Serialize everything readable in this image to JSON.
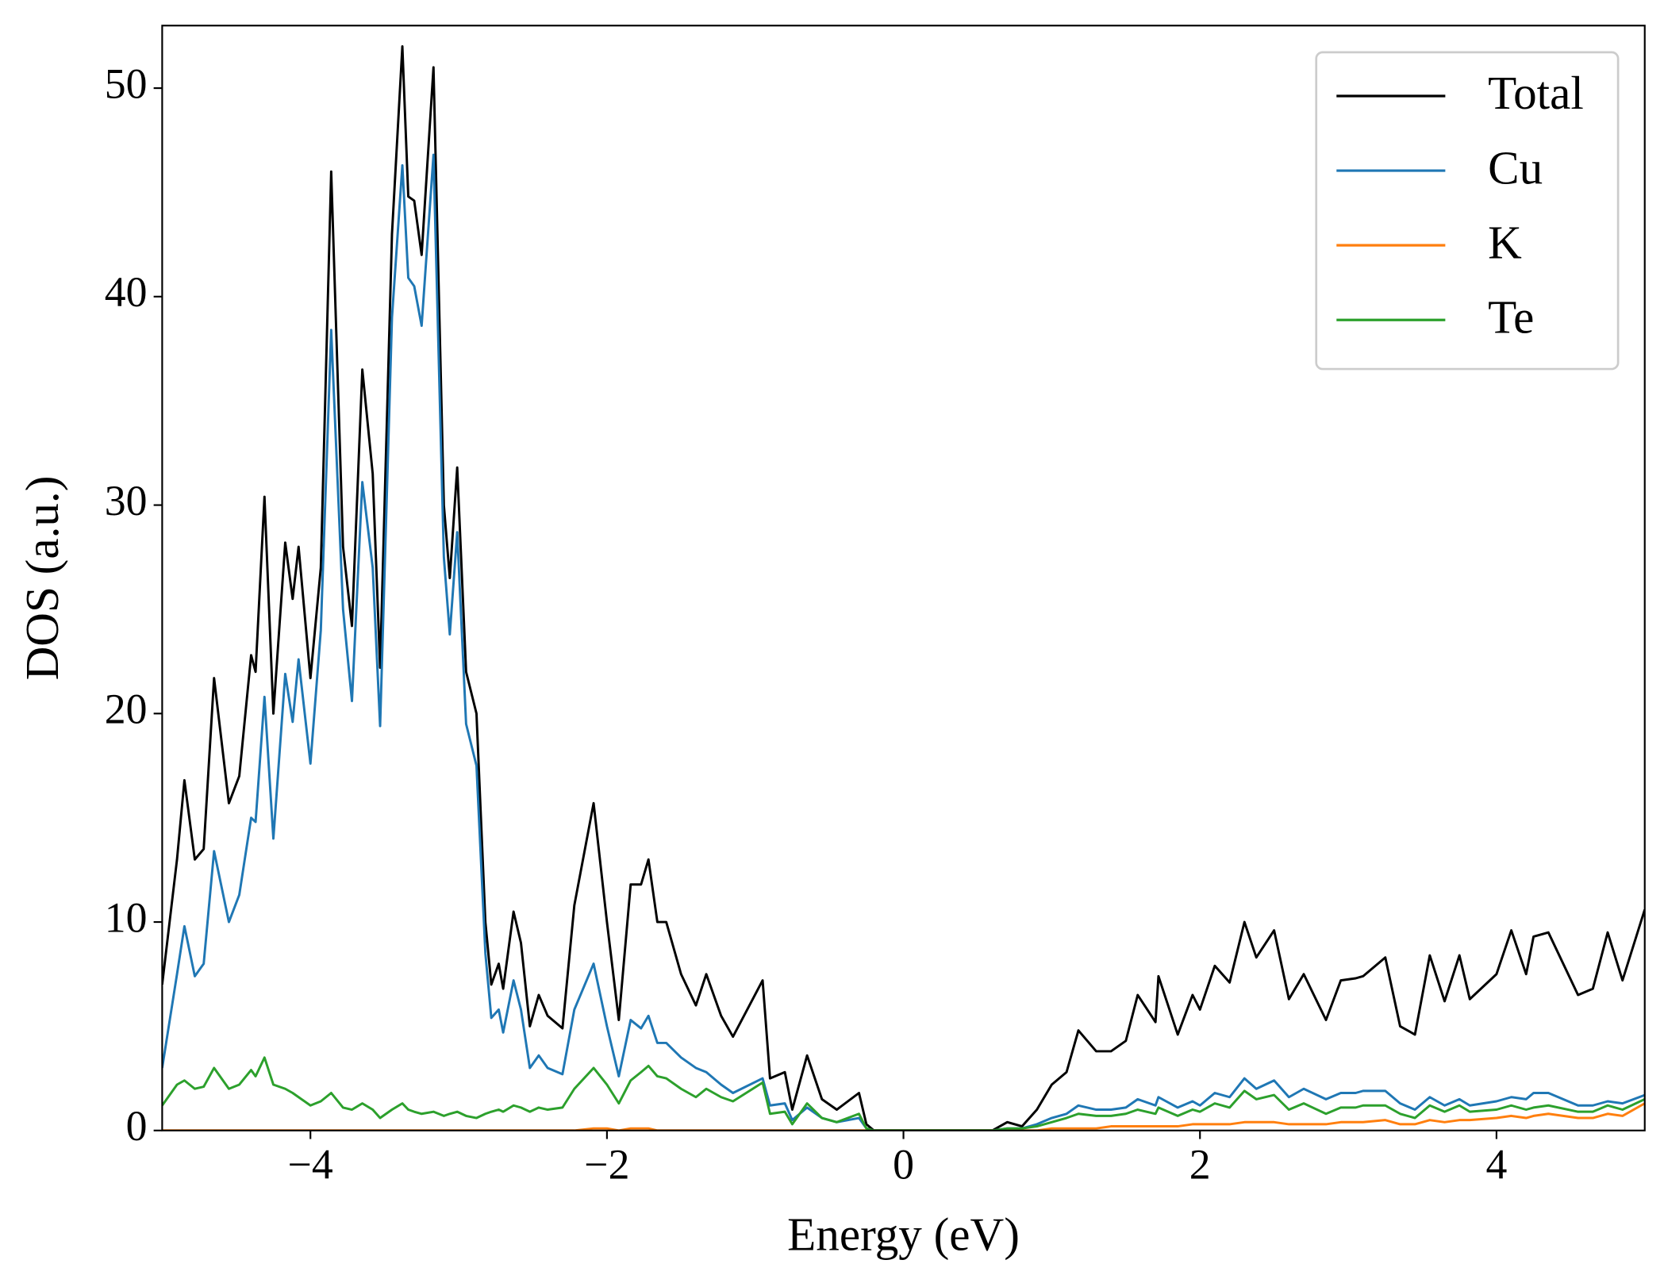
{
  "chart_data": {
    "type": "line",
    "xlabel": "Energy (eV)",
    "ylabel": "DOS (a.u.)",
    "xlim": [
      -5,
      5
    ],
    "ylim": [
      0,
      53
    ],
    "xticks": [
      {
        "value": -4,
        "label": "−4"
      },
      {
        "value": -2,
        "label": "−2"
      },
      0,
      2,
      4
    ],
    "yticks": [
      0,
      10,
      20,
      30,
      40,
      50
    ],
    "legend": "upper right",
    "grid": false,
    "x": [
      -5.0,
      -4.9,
      -4.85,
      -4.78,
      -4.72,
      -4.65,
      -4.55,
      -4.48,
      -4.4,
      -4.37,
      -4.31,
      -4.25,
      -4.17,
      -4.12,
      -4.08,
      -4.0,
      -3.93,
      -3.86,
      -3.78,
      -3.72,
      -3.65,
      -3.58,
      -3.53,
      -3.45,
      -3.38,
      -3.34,
      -3.3,
      -3.25,
      -3.17,
      -3.1,
      -3.06,
      -3.01,
      -2.95,
      -2.88,
      -2.82,
      -2.78,
      -2.73,
      -2.7,
      -2.63,
      -2.58,
      -2.52,
      -2.46,
      -2.4,
      -2.3,
      -2.22,
      -2.09,
      -2.0,
      -1.92,
      -1.84,
      -1.77,
      -1.72,
      -1.66,
      -1.6,
      -1.5,
      -1.4,
      -1.33,
      -1.23,
      -1.15,
      -0.95,
      -0.9,
      -0.8,
      -0.75,
      -0.65,
      -0.55,
      -0.45,
      -0.3,
      -0.25,
      -0.2,
      0.0,
      0.6,
      0.7,
      0.8,
      0.9,
      1.0,
      1.1,
      1.18,
      1.3,
      1.4,
      1.5,
      1.58,
      1.7,
      1.72,
      1.85,
      1.95,
      2.0,
      2.1,
      2.2,
      2.3,
      2.38,
      2.5,
      2.6,
      2.7,
      2.85,
      2.95,
      3.05,
      3.1,
      3.25,
      3.35,
      3.45,
      3.55,
      3.65,
      3.75,
      3.82,
      4.0,
      4.1,
      4.2,
      4.25,
      4.35,
      4.55,
      4.65,
      4.75,
      4.85,
      5.0
    ],
    "series": [
      {
        "name": "Total",
        "color": "#000000",
        "values": [
          7,
          13,
          16.8,
          13,
          13.5,
          21.7,
          15.7,
          17,
          22.8,
          22,
          30.4,
          20,
          28.2,
          25.5,
          28,
          21.7,
          27,
          46,
          28,
          24.2,
          36.5,
          31.5,
          22.2,
          43,
          52,
          44.8,
          44.6,
          42,
          51,
          30,
          26.5,
          31.8,
          22,
          20,
          10,
          7,
          8,
          6.8,
          10.5,
          9,
          5,
          6.5,
          5.5,
          4.9,
          10.8,
          15.7,
          10,
          5.3,
          11.8,
          11.8,
          13,
          10,
          10,
          7.5,
          6,
          7.5,
          5.5,
          4.5,
          7.2,
          2.5,
          2.8,
          1,
          3.6,
          1.5,
          1,
          1.8,
          0.3,
          0,
          0,
          0,
          0.4,
          0.2,
          1,
          2.2,
          2.8,
          4.8,
          3.8,
          3.8,
          4.3,
          6.5,
          5.2,
          7.4,
          4.6,
          6.5,
          5.8,
          7.9,
          7.1,
          10,
          8.3,
          9.6,
          6.3,
          7.5,
          5.3,
          7.2,
          7.3,
          7.4,
          8.3,
          5,
          4.6,
          8.4,
          6.2,
          8.4,
          6.3,
          7.5,
          9.6,
          7.5,
          9.3,
          9.5,
          6.5,
          6.8,
          9.5,
          7.2,
          10.6
        ]
      },
      {
        "name": "Cu",
        "color": "#1f77b4",
        "values": [
          3,
          7.5,
          9.8,
          7.4,
          8,
          13.4,
          10,
          11.3,
          15,
          14.8,
          20.8,
          14,
          21.9,
          19.6,
          22.6,
          17.6,
          24,
          38.4,
          25,
          20.6,
          31.1,
          27,
          19.4,
          39,
          46.3,
          40.9,
          40.5,
          38.6,
          46.8,
          27.5,
          23.8,
          28.7,
          19.5,
          17.5,
          8.5,
          5.4,
          5.8,
          4.7,
          7.2,
          5.8,
          3,
          3.6,
          3,
          2.7,
          5.8,
          8,
          5,
          2.6,
          5.3,
          4.9,
          5.5,
          4.2,
          4.2,
          3.5,
          3,
          2.8,
          2.2,
          1.8,
          2.5,
          1.2,
          1.3,
          0.5,
          1.1,
          0.6,
          0.4,
          0.6,
          0.1,
          0,
          0,
          0,
          0.1,
          0.1,
          0.3,
          0.6,
          0.8,
          1.2,
          1,
          1,
          1.1,
          1.5,
          1.2,
          1.6,
          1.1,
          1.4,
          1.2,
          1.8,
          1.6,
          2.5,
          2,
          2.4,
          1.6,
          2,
          1.5,
          1.8,
          1.8,
          1.9,
          1.9,
          1.3,
          1,
          1.6,
          1.2,
          1.5,
          1.2,
          1.4,
          1.6,
          1.5,
          1.8,
          1.8,
          1.2,
          1.2,
          1.4,
          1.3,
          1.7
        ]
      },
      {
        "name": "K",
        "color": "#ff7f0e",
        "values": [
          0,
          0,
          0,
          0,
          0,
          0,
          0,
          0,
          0,
          0,
          0,
          0,
          0,
          0,
          0,
          0,
          0,
          0,
          0,
          0,
          0,
          0,
          0,
          0,
          0,
          0,
          0,
          0,
          0,
          0,
          0,
          0,
          0,
          0,
          0,
          0,
          0,
          0,
          0,
          0,
          0,
          0,
          0,
          0,
          0,
          0.1,
          0.1,
          0,
          0.1,
          0.1,
          0.1,
          0,
          0,
          0,
          0,
          0,
          0,
          0,
          0,
          0,
          0,
          0,
          0,
          0,
          0,
          0,
          0,
          0,
          0,
          0,
          0,
          0,
          0,
          0.1,
          0.1,
          0.1,
          0.1,
          0.2,
          0.2,
          0.2,
          0.2,
          0.2,
          0.2,
          0.3,
          0.3,
          0.3,
          0.3,
          0.4,
          0.4,
          0.4,
          0.3,
          0.3,
          0.3,
          0.4,
          0.4,
          0.4,
          0.5,
          0.3,
          0.3,
          0.5,
          0.4,
          0.5,
          0.5,
          0.6,
          0.7,
          0.6,
          0.7,
          0.8,
          0.6,
          0.6,
          0.8,
          0.7,
          1.3
        ]
      },
      {
        "name": "Te",
        "color": "#2ca02c",
        "values": [
          1.2,
          2.2,
          2.4,
          2,
          2.1,
          3,
          2,
          2.2,
          2.9,
          2.6,
          3.5,
          2.2,
          2,
          1.8,
          1.6,
          1.2,
          1.4,
          1.8,
          1.1,
          1,
          1.3,
          1,
          0.6,
          1,
          1.3,
          1,
          0.9,
          0.8,
          0.9,
          0.7,
          0.8,
          0.9,
          0.7,
          0.6,
          0.8,
          0.9,
          1,
          0.9,
          1.2,
          1.1,
          0.9,
          1.1,
          1,
          1.1,
          2,
          3,
          2.2,
          1.3,
          2.4,
          2.8,
          3.1,
          2.6,
          2.5,
          2,
          1.6,
          2,
          1.6,
          1.4,
          2.3,
          0.8,
          0.9,
          0.3,
          1.3,
          0.6,
          0.4,
          0.8,
          0.1,
          0,
          0,
          0,
          0.1,
          0.1,
          0.2,
          0.4,
          0.6,
          0.8,
          0.7,
          0.7,
          0.8,
          1,
          0.8,
          1.1,
          0.7,
          1,
          0.9,
          1.3,
          1.1,
          1.9,
          1.5,
          1.7,
          1,
          1.3,
          0.8,
          1.1,
          1.1,
          1.2,
          1.2,
          0.8,
          0.6,
          1.2,
          0.9,
          1.2,
          0.9,
          1,
          1.2,
          1,
          1.1,
          1.2,
          0.9,
          0.9,
          1.2,
          1,
          1.5
        ]
      }
    ]
  }
}
